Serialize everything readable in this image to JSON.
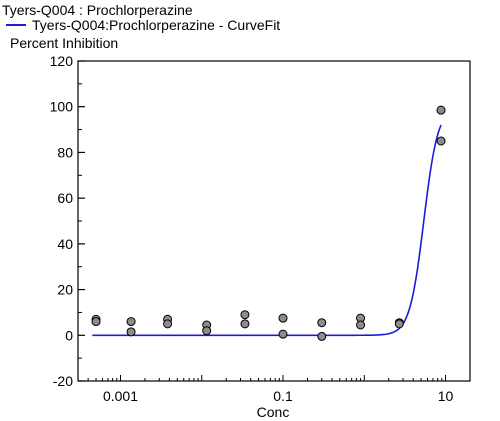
{
  "chart_data": {
    "type": "scatter",
    "title": "Tyers-Q004 : Prochlorperazine",
    "ylabel": "Percent Inhibition",
    "xlabel": "Conc",
    "x_scale": "log",
    "xlim": [
      0.0003,
      20
    ],
    "ylim": [
      -20,
      120
    ],
    "x_ticks": [
      {
        "value": 0.001,
        "label": "0.001"
      },
      {
        "value": 0.1,
        "label": "0.1"
      },
      {
        "value": 10,
        "label": "10"
      }
    ],
    "y_ticks": [
      {
        "value": -20,
        "label": "-20"
      },
      {
        "value": 0,
        "label": "0"
      },
      {
        "value": 20,
        "label": "20"
      },
      {
        "value": 40,
        "label": "40"
      },
      {
        "value": 60,
        "label": "60"
      },
      {
        "value": 80,
        "label": "80"
      },
      {
        "value": 100,
        "label": "100"
      },
      {
        "value": 120,
        "label": "120"
      }
    ],
    "grid": false,
    "legend_position": "top-left",
    "series": [
      {
        "kind": "points",
        "color": "#8c8c8c",
        "points": [
          {
            "x": 0.0005,
            "y": 7
          },
          {
            "x": 0.0005,
            "y": 6
          },
          {
            "x": 0.00135,
            "y": 6
          },
          {
            "x": 0.00135,
            "y": 1.5
          },
          {
            "x": 0.0038,
            "y": 7
          },
          {
            "x": 0.0038,
            "y": 5
          },
          {
            "x": 0.0115,
            "y": 4.5
          },
          {
            "x": 0.0115,
            "y": 2
          },
          {
            "x": 0.034,
            "y": 9
          },
          {
            "x": 0.034,
            "y": 5
          },
          {
            "x": 0.1,
            "y": 7.5
          },
          {
            "x": 0.1,
            "y": 0.5
          },
          {
            "x": 0.3,
            "y": 5.5
          },
          {
            "x": 0.3,
            "y": -0.5
          },
          {
            "x": 0.9,
            "y": 7.5
          },
          {
            "x": 0.9,
            "y": 4.5
          },
          {
            "x": 2.7,
            "y": 5.5
          },
          {
            "x": 2.7,
            "y": 5
          },
          {
            "x": 8.8,
            "y": 98.5
          },
          {
            "x": 8.8,
            "y": 85
          }
        ]
      },
      {
        "kind": "curve",
        "name": "Tyers-Q004:Prochlorperazine - CurveFit",
        "color": "#1c1cd6",
        "x_range": [
          0.00045,
          8.8
        ],
        "bottom": 0,
        "top": 100,
        "ec50": 5.4,
        "hill": 5
      }
    ]
  }
}
